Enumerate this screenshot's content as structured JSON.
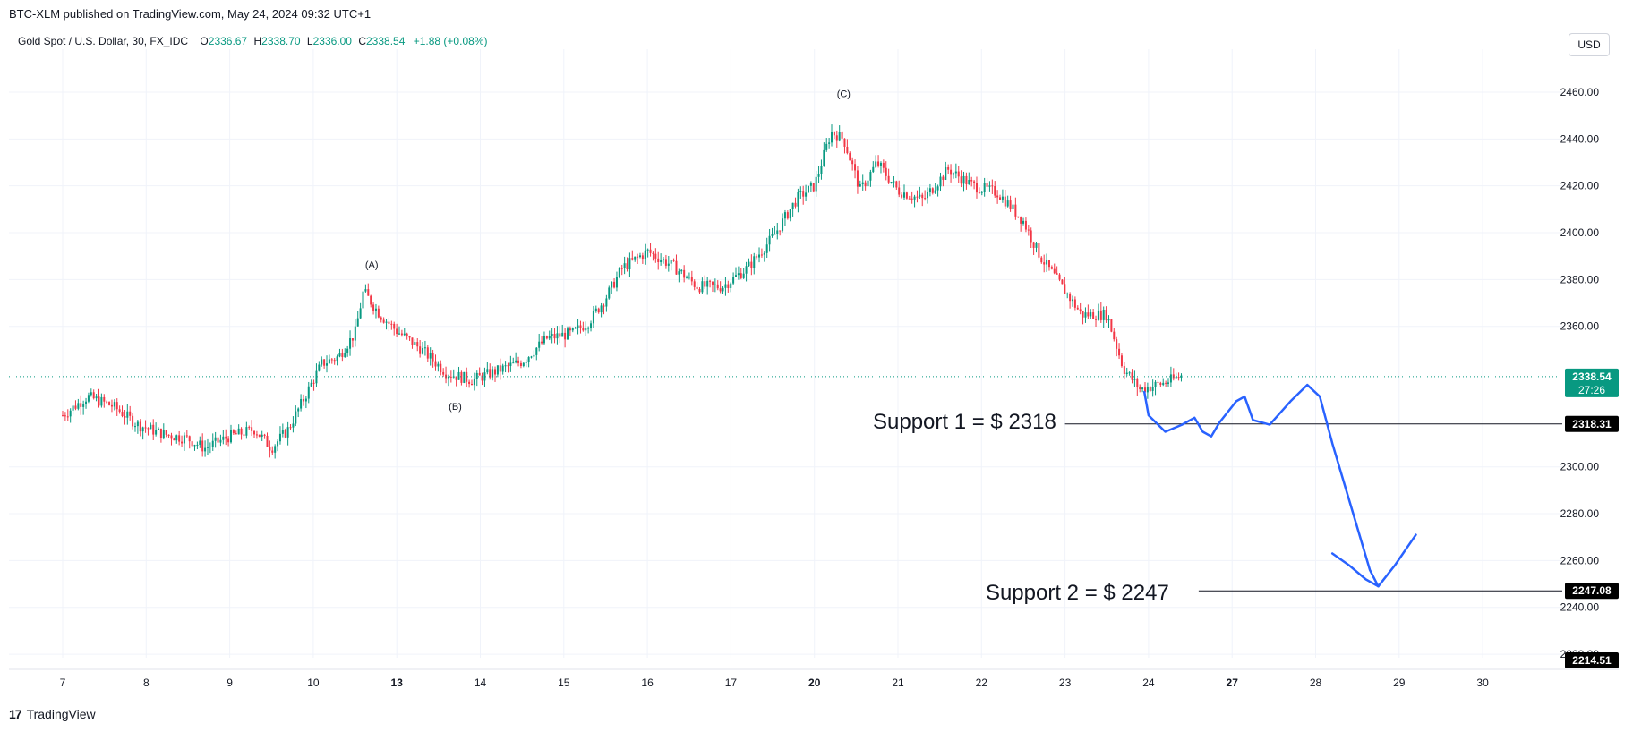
{
  "header": {
    "published_line": "BTC-XLM published on TradingView.com, May 24, 2024 09:32 UTC+1",
    "symbol": "Gold Spot / U.S. Dollar, 30, FX_IDC",
    "open_label": "O",
    "open": "2336.67",
    "high_label": "H",
    "high": "2338.70",
    "low_label": "L",
    "low": "2336.00",
    "close_label": "C",
    "close": "2338.54",
    "change": "+1.88 (+0.08%)",
    "currency_button": "USD"
  },
  "footer": {
    "logo_text": "TradingView"
  },
  "colors": {
    "up": "#089981",
    "down": "#f23645",
    "drawing": "#2962ff",
    "price_badge": "#089981",
    "badge_dark": "#000000"
  },
  "price_badges": {
    "current_price": "2338.54",
    "countdown": "27:26",
    "support1_price": "2318.31",
    "support2_price": "2247.08",
    "bottom_price": "2214.51"
  },
  "annotations": {
    "wave_a": "(A)",
    "wave_b": "(B)",
    "wave_c": "(C)",
    "support1_text": "Support 1 = $ 2318",
    "support2_text": "Support 2 = $ 2247"
  },
  "chart_data": {
    "type": "candlestick",
    "title": "Gold Spot / U.S. Dollar, 30, FX_IDC",
    "xlabel": "",
    "ylabel": "",
    "ylim": [
      2210,
      2475
    ],
    "y_ticks": [
      "2460.00",
      "2440.00",
      "2420.00",
      "2400.00",
      "2380.00",
      "2360.00",
      "2300.00",
      "2280.00",
      "2260.00",
      "2240.00",
      "2220.00"
    ],
    "x_ticks": [
      "7",
      "8",
      "9",
      "10",
      "13",
      "14",
      "15",
      "16",
      "17",
      "20",
      "21",
      "22",
      "23",
      "24",
      "27",
      "28",
      "29",
      "30"
    ],
    "grid": true,
    "price_path": [
      {
        "x": 0.0,
        "y": 2322
      },
      {
        "x": 0.3,
        "y": 2330
      },
      {
        "x": 0.6,
        "y": 2326
      },
      {
        "x": 0.9,
        "y": 2318
      },
      {
        "x": 1.2,
        "y": 2314
      },
      {
        "x": 1.5,
        "y": 2312
      },
      {
        "x": 1.7,
        "y": 2308
      },
      {
        "x": 2.0,
        "y": 2313
      },
      {
        "x": 2.3,
        "y": 2316
      },
      {
        "x": 2.5,
        "y": 2308
      },
      {
        "x": 2.7,
        "y": 2316
      },
      {
        "x": 2.9,
        "y": 2330
      },
      {
        "x": 3.1,
        "y": 2344
      },
      {
        "x": 3.3,
        "y": 2347
      },
      {
        "x": 3.5,
        "y": 2357
      },
      {
        "x": 3.6,
        "y": 2375
      },
      {
        "x": 3.8,
        "y": 2365
      },
      {
        "x": 4.0,
        "y": 2358
      },
      {
        "x": 4.3,
        "y": 2350
      },
      {
        "x": 4.6,
        "y": 2340
      },
      {
        "x": 4.9,
        "y": 2337
      },
      {
        "x": 5.2,
        "y": 2341
      },
      {
        "x": 5.5,
        "y": 2345
      },
      {
        "x": 5.8,
        "y": 2355
      },
      {
        "x": 6.1,
        "y": 2357
      },
      {
        "x": 6.3,
        "y": 2362
      },
      {
        "x": 6.5,
        "y": 2372
      },
      {
        "x": 6.7,
        "y": 2385
      },
      {
        "x": 7.0,
        "y": 2392
      },
      {
        "x": 7.3,
        "y": 2386
      },
      {
        "x": 7.6,
        "y": 2377
      },
      {
        "x": 7.9,
        "y": 2377
      },
      {
        "x": 8.2,
        "y": 2385
      },
      {
        "x": 8.5,
        "y": 2398
      },
      {
        "x": 8.8,
        "y": 2415
      },
      {
        "x": 9.0,
        "y": 2420
      },
      {
        "x": 9.2,
        "y": 2443
      },
      {
        "x": 9.35,
        "y": 2440
      },
      {
        "x": 9.55,
        "y": 2418
      },
      {
        "x": 9.75,
        "y": 2430
      },
      {
        "x": 10.0,
        "y": 2418
      },
      {
        "x": 10.3,
        "y": 2414
      },
      {
        "x": 10.6,
        "y": 2427
      },
      {
        "x": 10.9,
        "y": 2420
      },
      {
        "x": 11.2,
        "y": 2417
      },
      {
        "x": 11.5,
        "y": 2405
      },
      {
        "x": 11.7,
        "y": 2390
      },
      {
        "x": 11.9,
        "y": 2380
      },
      {
        "x": 12.2,
        "y": 2365
      },
      {
        "x": 12.5,
        "y": 2365
      },
      {
        "x": 12.7,
        "y": 2342
      },
      {
        "x": 12.9,
        "y": 2333
      },
      {
        "x": 13.2,
        "y": 2336
      },
      {
        "x": 13.4,
        "y": 2339
      }
    ],
    "wave_points": [
      {
        "label": "(A)",
        "x": 3.7,
        "price": 2378
      },
      {
        "label": "(B)",
        "x": 4.7,
        "price": 2335
      },
      {
        "label": "(C)",
        "x": 9.35,
        "price": 2451
      }
    ],
    "support_levels": [
      {
        "label": "Support 1 = $ 2318",
        "price": 2318.31
      },
      {
        "label": "Support 2 = $ 2247",
        "price": 2247.08
      }
    ],
    "current_price": 2338.54
  }
}
